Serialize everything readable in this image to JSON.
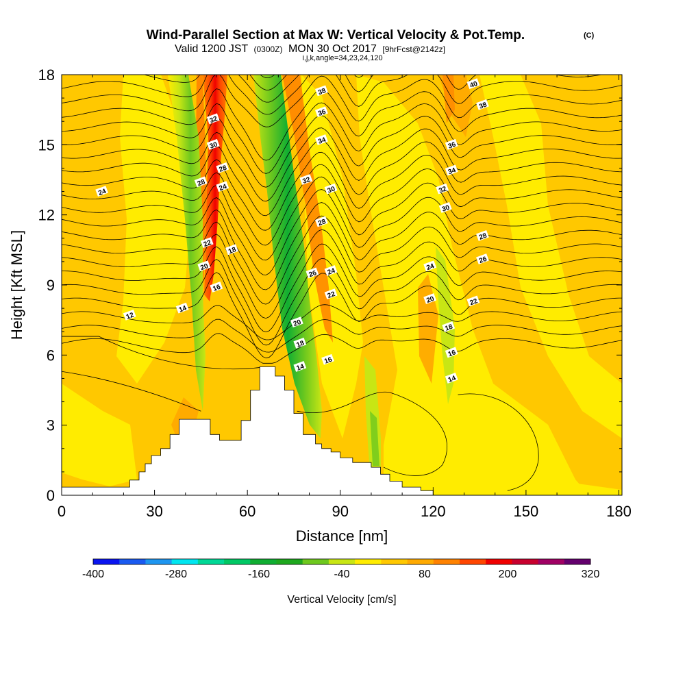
{
  "chart_data": {
    "type": "heatmap",
    "title": "Wind-Parallel Section at Max W: Vertical Velocity & Pot.Temp.",
    "title_mark": "(C)",
    "subtitle_a": "Valid 1200 JST",
    "subtitle_b": "(0300Z)",
    "subtitle_c": "MON 30 Oct 2017",
    "subtitle_d": "[9hrFcst@2142z]",
    "subtitle2": "i,j,k,angle=34,23,24,120",
    "xlabel": "Distance [nm]",
    "ylabel": "Height [Kft MSL]",
    "xlim": [
      0,
      181
    ],
    "ylim": [
      0,
      18
    ],
    "x_ticks": [
      "0",
      "30",
      "60",
      "90",
      "120",
      "150",
      "180"
    ],
    "y_ticks": [
      "0",
      "3",
      "6",
      "9",
      "12",
      "15",
      "18"
    ],
    "colorbar": {
      "label": "Vertical Velocity [cm/s]",
      "tick_labels": [
        "-400",
        "-280",
        "-160",
        "-40",
        "80",
        "200",
        "320"
      ],
      "bins": [
        -400,
        -360,
        -320,
        -280,
        -240,
        -200,
        -160,
        -120,
        -80,
        -40,
        0,
        40,
        80,
        120,
        160,
        200,
        240,
        280,
        320
      ],
      "colors": [
        "#0a14f0",
        "#1a5af0",
        "#1e96f0",
        "#00e6f0",
        "#00d896",
        "#00c864",
        "#10ae32",
        "#1ea81e",
        "#6ec81e",
        "#c8e614",
        "#ffec00",
        "#ffc800",
        "#ffaa00",
        "#ff8200",
        "#ff4600",
        "#f00000",
        "#c8002e",
        "#a00064",
        "#64006e"
      ]
    },
    "w_field": [
      {
        "x": 48,
        "y": 14,
        "w": 210,
        "note": "updraft core"
      },
      {
        "x": 40,
        "y": 15,
        "w": -120,
        "note": "downdraft"
      },
      {
        "x": 70,
        "y": 13,
        "w": -160,
        "note": "downdraft core"
      },
      {
        "x": 86,
        "y": 10,
        "w": 110,
        "note": "updraft"
      },
      {
        "x": 122,
        "y": 16,
        "w": 120,
        "note": "updraft"
      },
      {
        "x": 126,
        "y": 10,
        "w": -70,
        "note": "downdraft"
      }
    ],
    "terrain": {
      "x": [
        0,
        22,
        22,
        25,
        25,
        27,
        27,
        29,
        29,
        32,
        32,
        35,
        35,
        38,
        38,
        48,
        48,
        51,
        51,
        58,
        58,
        61,
        61,
        64,
        64,
        69,
        69,
        72,
        72,
        75,
        75,
        78,
        78,
        82,
        82,
        84,
        84,
        87,
        87,
        90,
        90,
        94,
        94,
        100,
        100,
        103,
        103,
        106,
        106,
        110,
        110,
        116,
        116,
        120,
        120
      ],
      "height_kft": [
        0.35,
        0.35,
        0.65,
        0.65,
        1.0,
        1.0,
        1.35,
        1.35,
        1.7,
        1.7,
        2.0,
        2.0,
        2.6,
        2.6,
        3.25,
        3.25,
        2.6,
        2.6,
        2.35,
        2.35,
        3.2,
        3.2,
        4.5,
        4.5,
        5.5,
        5.5,
        5.1,
        5.1,
        4.5,
        4.5,
        3.5,
        3.5,
        2.6,
        2.6,
        2.2,
        2.2,
        2.0,
        2.0,
        1.85,
        1.85,
        1.6,
        1.6,
        1.4,
        1.4,
        1.2,
        1.2,
        0.9,
        0.9,
        0.6,
        0.6,
        0.35,
        0.35,
        0.2,
        0.2,
        0.35
      ]
    },
    "contour_labels": [
      {
        "x": 22,
        "y": 7.7,
        "text": "12"
      },
      {
        "x": 39,
        "y": 8.0,
        "text": "14"
      },
      {
        "x": 50,
        "y": 8.9,
        "text": "16"
      },
      {
        "x": 46,
        "y": 9.8,
        "text": "20"
      },
      {
        "x": 47,
        "y": 10.8,
        "text": "22"
      },
      {
        "x": 55,
        "y": 10.5,
        "text": "18"
      },
      {
        "x": 13,
        "y": 13.0,
        "text": "24"
      },
      {
        "x": 45,
        "y": 13.4,
        "text": "28"
      },
      {
        "x": 52,
        "y": 13.2,
        "text": "24"
      },
      {
        "x": 52,
        "y": 14.0,
        "text": "28"
      },
      {
        "x": 49,
        "y": 15.0,
        "text": "30"
      },
      {
        "x": 49,
        "y": 16.1,
        "text": "32"
      },
      {
        "x": 79,
        "y": 13.5,
        "text": "32"
      },
      {
        "x": 87,
        "y": 13.1,
        "text": "30"
      },
      {
        "x": 84,
        "y": 11.7,
        "text": "28"
      },
      {
        "x": 81,
        "y": 9.5,
        "text": "26"
      },
      {
        "x": 87,
        "y": 9.6,
        "text": "24"
      },
      {
        "x": 87,
        "y": 8.6,
        "text": "22"
      },
      {
        "x": 76,
        "y": 7.4,
        "text": "20"
      },
      {
        "x": 77,
        "y": 6.5,
        "text": "18"
      },
      {
        "x": 77,
        "y": 5.5,
        "text": "14"
      },
      {
        "x": 86,
        "y": 5.8,
        "text": "16"
      },
      {
        "x": 84,
        "y": 17.3,
        "text": "38"
      },
      {
        "x": 84,
        "y": 16.4,
        "text": "36"
      },
      {
        "x": 84,
        "y": 15.2,
        "text": "34"
      },
      {
        "x": 133,
        "y": 17.6,
        "text": "40"
      },
      {
        "x": 136,
        "y": 16.7,
        "text": "38"
      },
      {
        "x": 126,
        "y": 15.0,
        "text": "36"
      },
      {
        "x": 126,
        "y": 13.9,
        "text": "34"
      },
      {
        "x": 123,
        "y": 13.1,
        "text": "32"
      },
      {
        "x": 124,
        "y": 12.3,
        "text": "30"
      },
      {
        "x": 136,
        "y": 11.1,
        "text": "28"
      },
      {
        "x": 136,
        "y": 10.1,
        "text": "26"
      },
      {
        "x": 119,
        "y": 9.8,
        "text": "24"
      },
      {
        "x": 119,
        "y": 8.4,
        "text": "20"
      },
      {
        "x": 133,
        "y": 8.3,
        "text": "22"
      },
      {
        "x": 125,
        "y": 7.2,
        "text": "18"
      },
      {
        "x": 126,
        "y": 6.1,
        "text": "16"
      },
      {
        "x": 126,
        "y": 5.0,
        "text": "14"
      }
    ]
  }
}
